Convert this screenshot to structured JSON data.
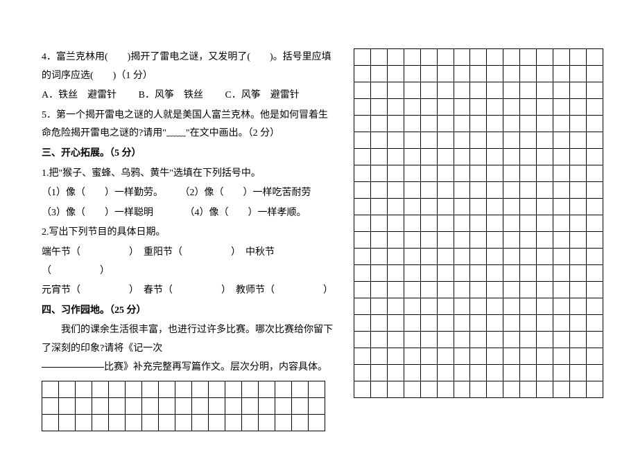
{
  "q4": {
    "text": "4．富兰克林用(　　)揭开了雷电之谜，又发明了(　　)。括号里应填的词序应选(　　)（1 分）",
    "optA": "A．铁丝　避雷针",
    "optB": "B．风筝　铁丝",
    "optC": "C．风筝　避雷针"
  },
  "q5": "5．第一个揭开雷电之谜的人就是美国人富兰克林。他是如何冒着生命危险揭开雷电之谜的?请用\"﹏﹏\"在文中画出。（2 分）",
  "s3": {
    "title": "三、开心拓展。（5 分）",
    "q1": "1.把\"猴子、蜜蜂、乌鸦、黄牛\"选填在下列括号中。",
    "q1a": "（1）像（　　）一样勤劳。",
    "q1b": "（2）像（　　）一样吃苦耐劳",
    "q1c": "（3）像（　　）一样聪明",
    "q1d": "（4）像（　　）一样孝顺。",
    "q2": "2.写出下列节目的具体日期。",
    "q2a": "端午节（　　　　　）　重阳节（　　　　　）　中秋节（　　　　　）",
    "q2b": "元宵节（　　　　　）　春节（　　　　　）　教师节（　　　　　）"
  },
  "s4": {
    "title": "四、习作园地。（25 分）",
    "body1": "我们的课余生活很丰富，也进行过许多比赛。哪次比赛给你留下了深刻的印象?请将《记一次",
    "body2": "比赛》补充完整再写篇作文。层次分明，内容具体。"
  },
  "left_grid": {
    "rows": 3,
    "cols": 17
  },
  "right_grid": {
    "rows": 21,
    "cols": 15
  },
  "style": {
    "cell_border": "#000000",
    "background": "#ffffff",
    "font": "SimSun",
    "fontsize_body": 14
  }
}
